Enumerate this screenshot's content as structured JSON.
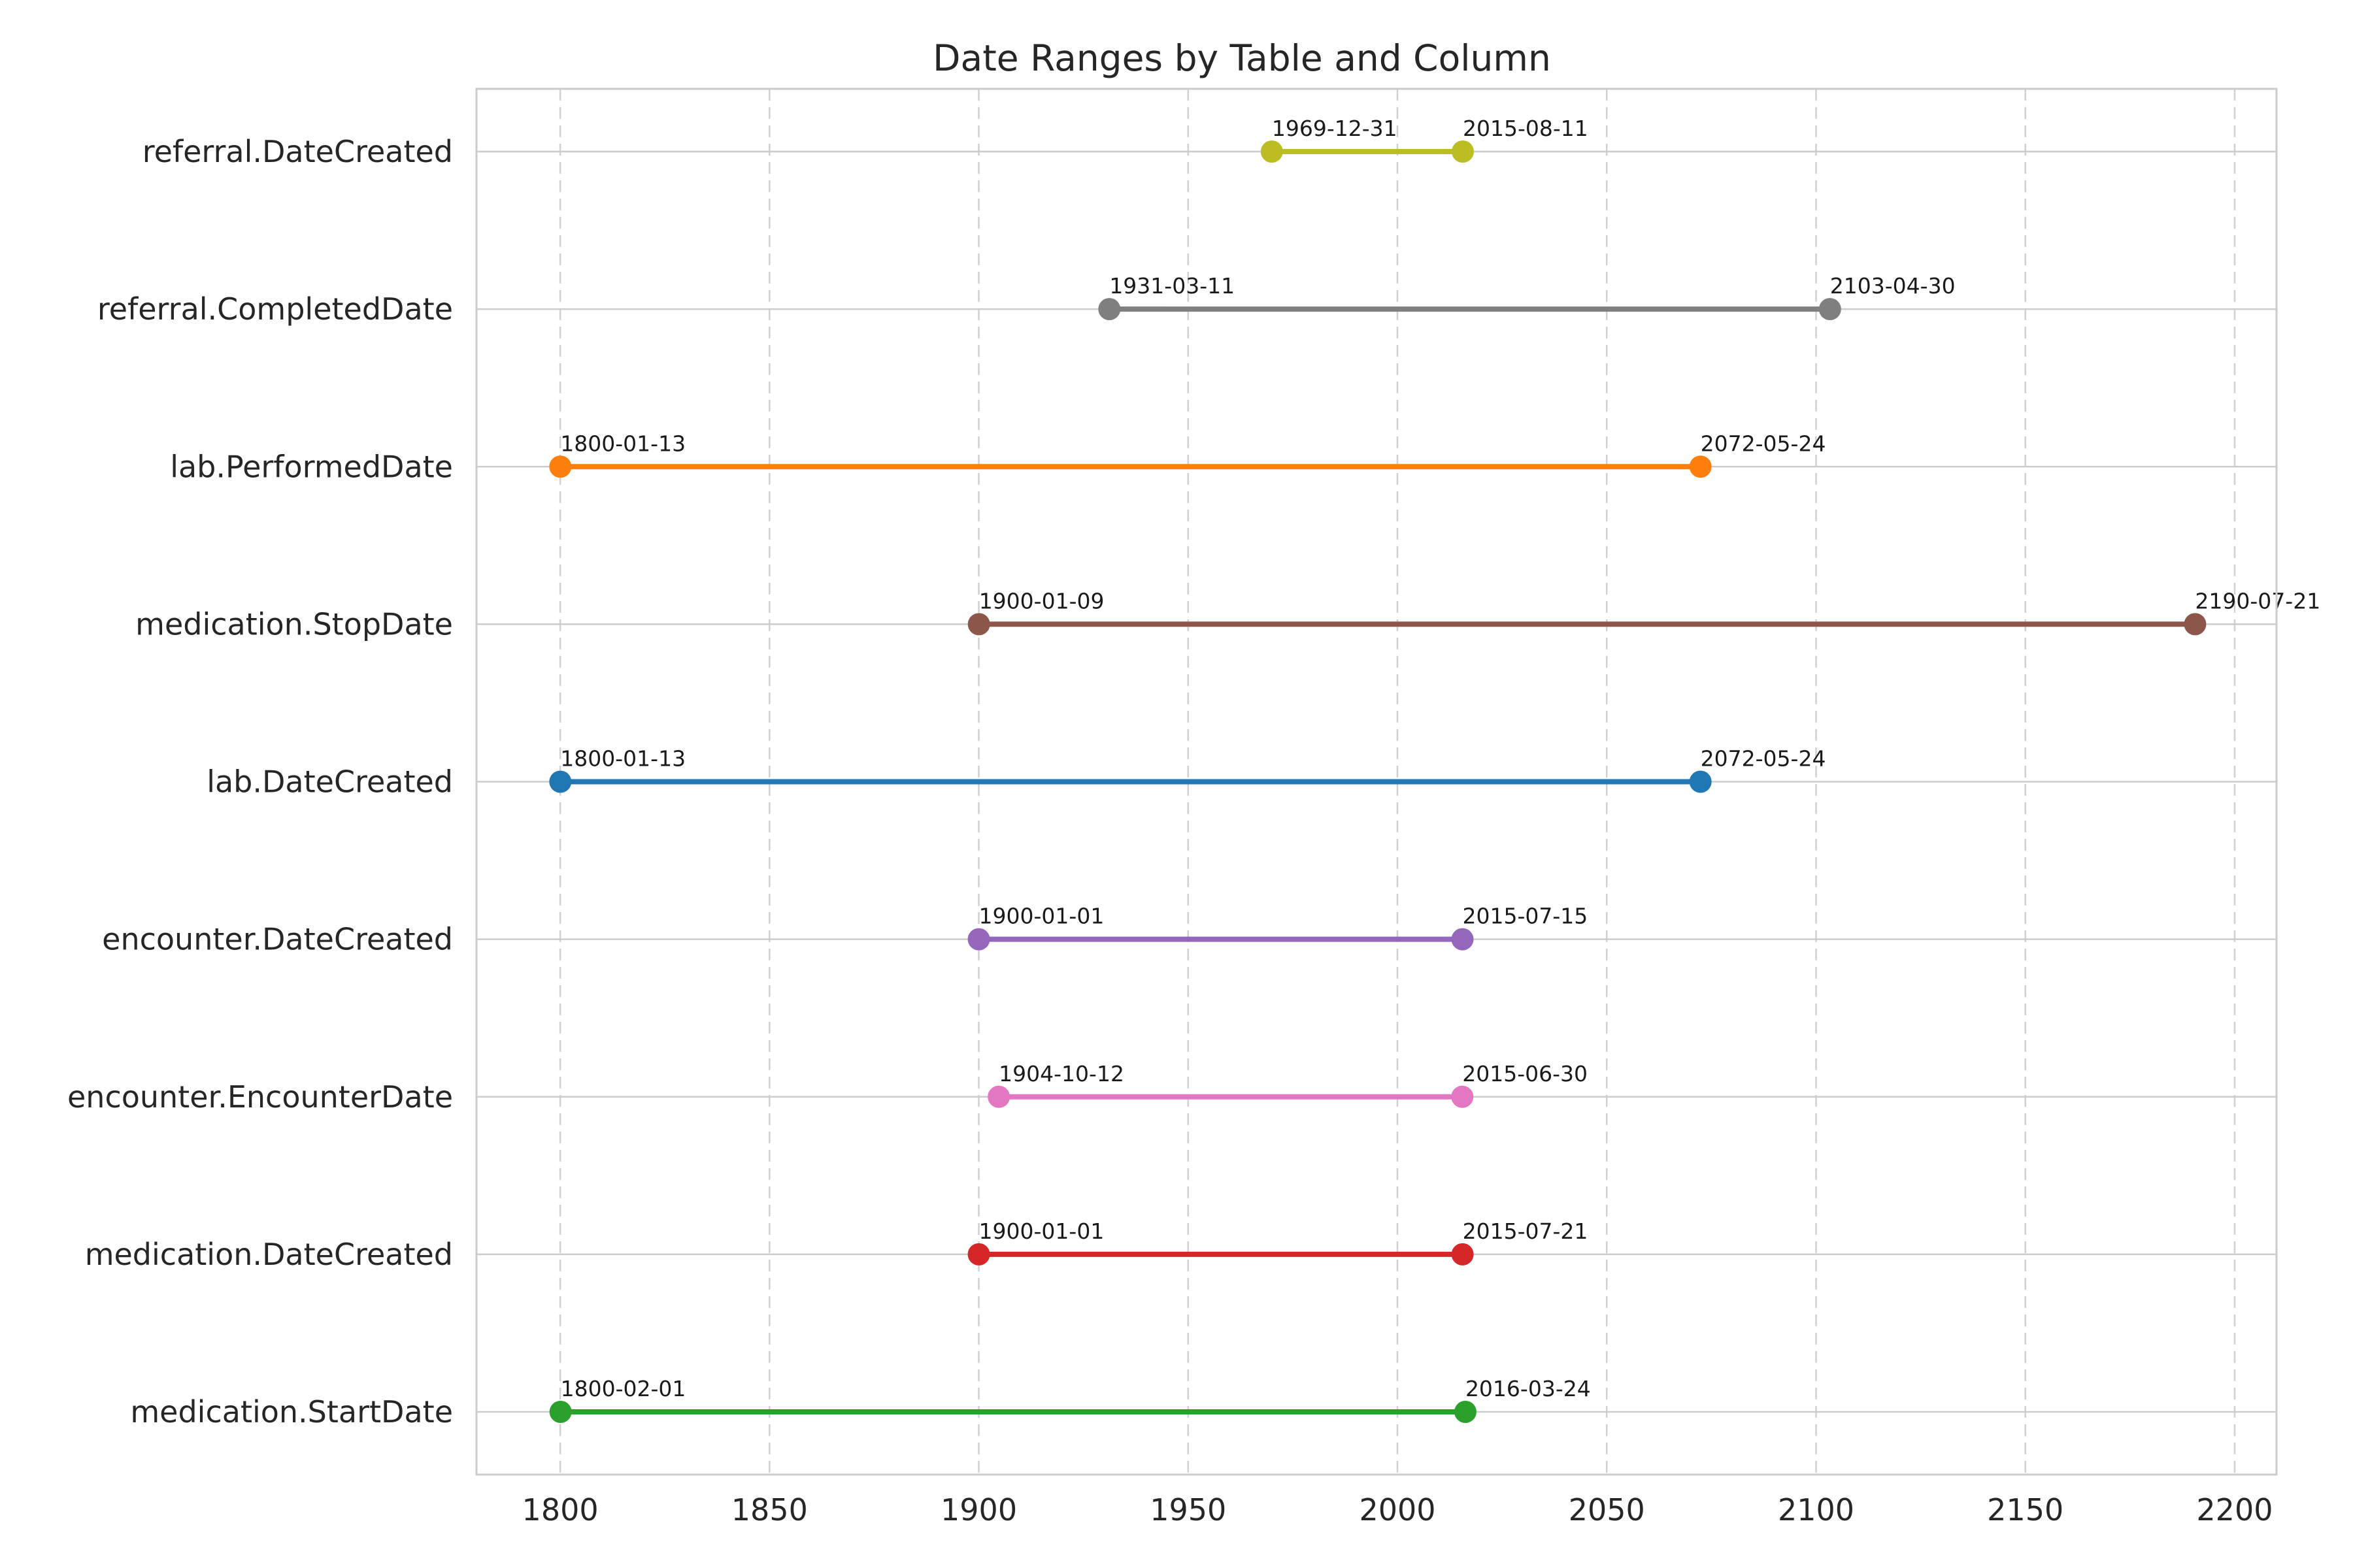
{
  "chart_data": {
    "type": "dumbbell",
    "title": "Date Ranges by Table and Column",
    "xlabel": "",
    "ylabel": "",
    "xlim": [
      1780,
      2210
    ],
    "x_ticks": [
      1800,
      1850,
      1900,
      1950,
      2000,
      2050,
      2100,
      2150,
      2200
    ],
    "grid": "vertical dashed, horizontal solid per row",
    "legend": "none",
    "series": [
      {
        "name": "medication.StartDate",
        "start": "1800-02-01",
        "end": "2016-03-24",
        "color": "#2ca02c"
      },
      {
        "name": "medication.DateCreated",
        "start": "1900-01-01",
        "end": "2015-07-21",
        "color": "#d62728"
      },
      {
        "name": "encounter.EncounterDate",
        "start": "1904-10-12",
        "end": "2015-06-30",
        "color": "#e377c2"
      },
      {
        "name": "encounter.DateCreated",
        "start": "1900-01-01",
        "end": "2015-07-15",
        "color": "#9467bd"
      },
      {
        "name": "lab.DateCreated",
        "start": "1800-01-13",
        "end": "2072-05-24",
        "color": "#1f77b4"
      },
      {
        "name": "medication.StopDate",
        "start": "1900-01-09",
        "end": "2190-07-21",
        "color": "#8c564b"
      },
      {
        "name": "lab.PerformedDate",
        "start": "1800-01-13",
        "end": "2072-05-24",
        "color": "#ff7f0e"
      },
      {
        "name": "referral.CompletedDate",
        "start": "1931-03-11",
        "end": "2103-04-30",
        "color": "#7f7f7f"
      },
      {
        "name": "referral.DateCreated",
        "start": "1969-12-31",
        "end": "2015-08-11",
        "color": "#bcbd22"
      }
    ]
  }
}
